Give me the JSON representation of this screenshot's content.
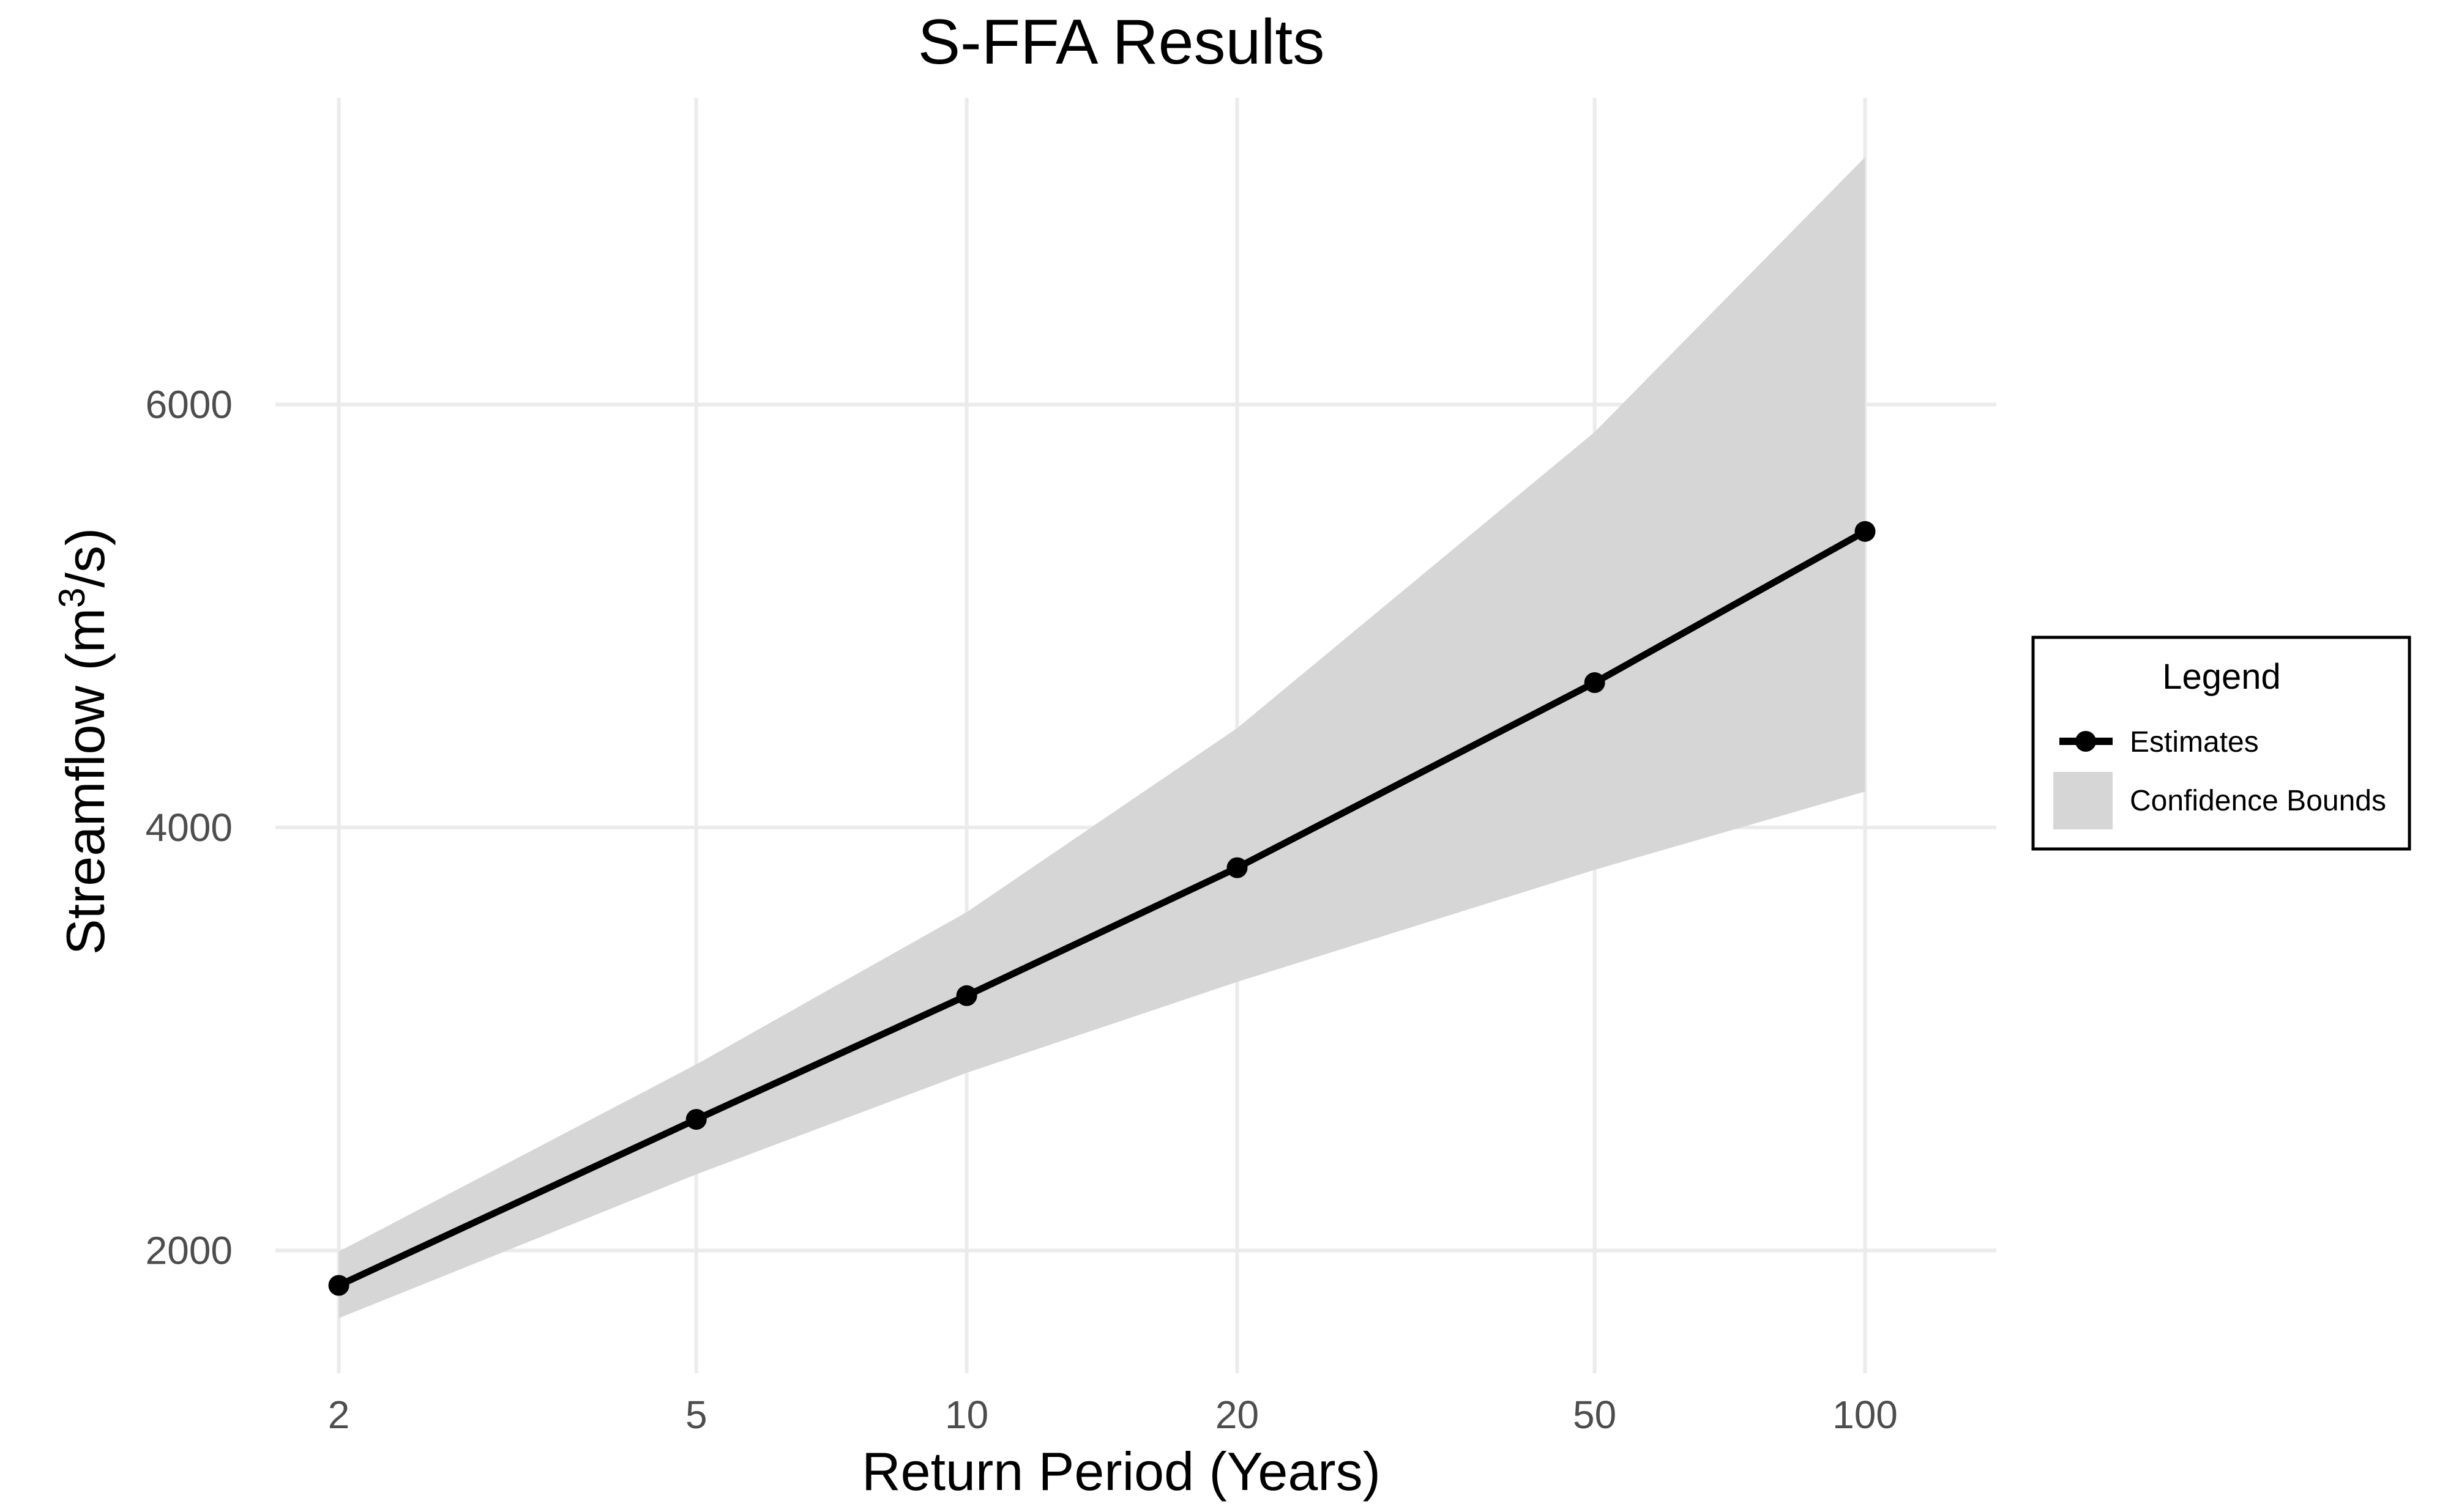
{
  "chart_data": {
    "type": "line",
    "title": "S-FFA Results",
    "xlabel": "Return Period (Years)",
    "ylabel_main": "Streamflow (m",
    "ylabel_sup": "3",
    "ylabel_tail": "/s)",
    "x_scale": "log",
    "x": [
      2,
      5,
      10,
      20,
      50,
      100
    ],
    "x_tick_labels": [
      "2",
      "5",
      "10",
      "20",
      "50",
      "100"
    ],
    "y_ticks": [
      2000,
      4000,
      6000
    ],
    "y_tick_labels": [
      "2000",
      "4000",
      "6000"
    ],
    "xlim": [
      1.7,
      140
    ],
    "ylim": [
      1420,
      7450
    ],
    "grid": true,
    "series": [
      {
        "name": "Estimates",
        "values": [
          1835,
          2620,
          3205,
          3810,
          4685,
          5400
        ],
        "color": "#000000"
      }
    ],
    "confidence_bounds": {
      "name": "Confidence Bounds",
      "lower": [
        1680,
        2360,
        2840,
        3270,
        3800,
        4170
      ],
      "upper": [
        1995,
        2880,
        3600,
        4470,
        5870,
        7170
      ],
      "color": "#d6d6d6"
    },
    "legend": {
      "title": "Legend",
      "position": "right",
      "items": [
        "Estimates",
        "Confidence Bounds"
      ]
    }
  }
}
